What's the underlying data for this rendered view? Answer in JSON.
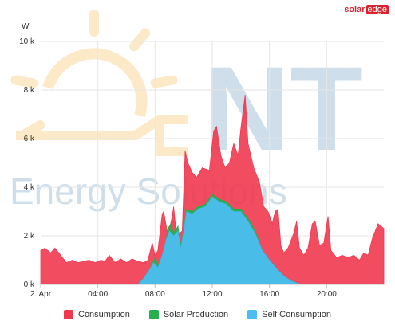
{
  "brand": {
    "part1": "solar",
    "part2": "edge"
  },
  "watermark": {
    "big": "NT",
    "sub": "Energy Solutions"
  },
  "chart_data": {
    "type": "area",
    "title": "",
    "ylabel": "W",
    "ylim": [
      0,
      10000
    ],
    "yticks": [
      0,
      2000,
      4000,
      6000,
      8000,
      10000
    ],
    "ytick_labels": [
      "0 k",
      "2 k",
      "4 k",
      "6 k",
      "8 k",
      "10 k"
    ],
    "xlim": [
      0,
      24
    ],
    "xticks": [
      0,
      4,
      8,
      12,
      16,
      20
    ],
    "xtick_labels": [
      "2. Apr",
      "04:00",
      "08:00",
      "12:00",
      "16:00",
      "20:00"
    ],
    "grid": true,
    "legend_position": "bottom",
    "series": [
      {
        "name": "Consumption",
        "color": "#f0394f",
        "points": [
          [
            0,
            1400
          ],
          [
            0.3,
            1500
          ],
          [
            0.7,
            1300
          ],
          [
            1,
            1500
          ],
          [
            1.4,
            1200
          ],
          [
            1.8,
            900
          ],
          [
            2.2,
            1000
          ],
          [
            2.6,
            900
          ],
          [
            3,
            950
          ],
          [
            3.4,
            1000
          ],
          [
            3.8,
            900
          ],
          [
            4.2,
            1000
          ],
          [
            4.5,
            950
          ],
          [
            4.8,
            1200
          ],
          [
            5.2,
            900
          ],
          [
            5.6,
            1050
          ],
          [
            6,
            900
          ],
          [
            6.4,
            1050
          ],
          [
            6.8,
            950
          ],
          [
            7.2,
            900
          ],
          [
            7.5,
            1000
          ],
          [
            7.8,
            1700
          ],
          [
            8.0,
            1200
          ],
          [
            8.2,
            1400
          ],
          [
            8.5,
            2900
          ],
          [
            8.6,
            3000
          ],
          [
            8.9,
            2000
          ],
          [
            9.2,
            2800
          ],
          [
            9.3,
            3200
          ],
          [
            9.5,
            2000
          ],
          [
            9.9,
            2200
          ],
          [
            10.1,
            5500
          ],
          [
            10.3,
            5000
          ],
          [
            10.6,
            4600
          ],
          [
            10.9,
            4400
          ],
          [
            11.3,
            4800
          ],
          [
            11.8,
            4700
          ],
          [
            12.1,
            6300
          ],
          [
            12.3,
            6500
          ],
          [
            12.6,
            5300
          ],
          [
            12.9,
            4800
          ],
          [
            13.2,
            5000
          ],
          [
            13.5,
            5800
          ],
          [
            13.8,
            5300
          ],
          [
            14.0,
            6400
          ],
          [
            14.3,
            7800
          ],
          [
            14.5,
            5800
          ],
          [
            14.9,
            4800
          ],
          [
            15.3,
            4200
          ],
          [
            15.6,
            3200
          ],
          [
            15.9,
            3000
          ],
          [
            16.2,
            2500
          ],
          [
            16.4,
            3000
          ],
          [
            16.6,
            3100
          ],
          [
            16.8,
            1600
          ],
          [
            17.0,
            1300
          ],
          [
            17.3,
            1500
          ],
          [
            17.7,
            2100
          ],
          [
            17.9,
            2600
          ],
          [
            18.1,
            1500
          ],
          [
            18.4,
            1200
          ],
          [
            18.7,
            1500
          ],
          [
            19.0,
            2500
          ],
          [
            19.2,
            2600
          ],
          [
            19.5,
            1600
          ],
          [
            19.8,
            1700
          ],
          [
            20.1,
            2800
          ],
          [
            20.3,
            1400
          ],
          [
            20.7,
            1100
          ],
          [
            21.1,
            1200
          ],
          [
            21.5,
            1100
          ],
          [
            21.9,
            1200
          ],
          [
            22.3,
            1000
          ],
          [
            22.6,
            1300
          ],
          [
            22.9,
            1200
          ],
          [
            23.2,
            1900
          ],
          [
            23.6,
            2500
          ],
          [
            24,
            2300
          ]
        ]
      },
      {
        "name": "Solar Production",
        "color": "#22b14c",
        "points": [
          [
            6.8,
            0
          ],
          [
            7.2,
            250
          ],
          [
            7.6,
            600
          ],
          [
            8.0,
            1100
          ],
          [
            8.3,
            700
          ],
          [
            8.6,
            1300
          ],
          [
            8.9,
            2300
          ],
          [
            9.1,
            2500
          ],
          [
            9.3,
            2100
          ],
          [
            9.6,
            2400
          ],
          [
            9.8,
            1600
          ],
          [
            10.0,
            2300
          ],
          [
            10.2,
            3100
          ],
          [
            10.6,
            3000
          ],
          [
            11.0,
            3200
          ],
          [
            11.5,
            3300
          ],
          [
            12.0,
            3700
          ],
          [
            12.5,
            3500
          ],
          [
            13.0,
            3400
          ],
          [
            13.5,
            3100
          ],
          [
            14.0,
            3100
          ],
          [
            14.5,
            2700
          ],
          [
            15.0,
            2200
          ],
          [
            15.5,
            1400
          ],
          [
            16.0,
            1000
          ],
          [
            16.5,
            650
          ],
          [
            17.0,
            350
          ],
          [
            17.5,
            150
          ],
          [
            18.0,
            40
          ],
          [
            18.3,
            0
          ]
        ]
      },
      {
        "name": "Self Consumption",
        "color": "#3fb4df",
        "points": [
          [
            6.8,
            0
          ],
          [
            7.2,
            250
          ],
          [
            7.6,
            600
          ],
          [
            7.9,
            900
          ],
          [
            8.2,
            700
          ],
          [
            8.5,
            1200
          ],
          [
            8.8,
            1900
          ],
          [
            9.0,
            2200
          ],
          [
            9.3,
            2000
          ],
          [
            9.6,
            2200
          ],
          [
            9.8,
            1500
          ],
          [
            10.0,
            2200
          ],
          [
            10.2,
            3000
          ],
          [
            10.6,
            2900
          ],
          [
            11.0,
            3100
          ],
          [
            11.5,
            3200
          ],
          [
            12.0,
            3600
          ],
          [
            12.5,
            3400
          ],
          [
            13.0,
            3300
          ],
          [
            13.5,
            3000
          ],
          [
            14.0,
            3000
          ],
          [
            14.5,
            2600
          ],
          [
            15.0,
            2100
          ],
          [
            15.5,
            1400
          ],
          [
            16.0,
            1000
          ],
          [
            16.5,
            650
          ],
          [
            17.0,
            350
          ],
          [
            17.5,
            150
          ],
          [
            18.0,
            40
          ],
          [
            18.3,
            0
          ]
        ]
      }
    ]
  }
}
